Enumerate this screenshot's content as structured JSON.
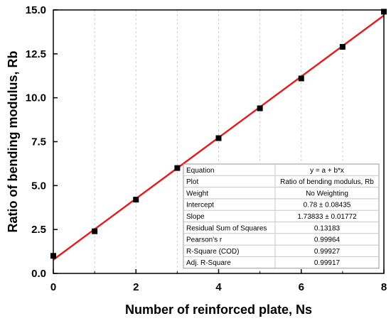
{
  "chart_data": {
    "type": "scatter",
    "xlabel": "Number of reinforced plate, Ns",
    "ylabel": "Ratio of bending modulus, Rb",
    "xlim": [
      0,
      8
    ],
    "ylim": [
      0,
      15
    ],
    "x_ticks": [
      "0",
      "2",
      "4",
      "6",
      "8"
    ],
    "y_ticks": [
      "0.0",
      "2.5",
      "5.0",
      "7.5",
      "10.0",
      "12.5",
      "15.0"
    ],
    "grid": "vertical-dashed",
    "series": [
      {
        "kind": "points",
        "marker": "square",
        "color": "#000000",
        "x": [
          0,
          1,
          2,
          3,
          4,
          5,
          6,
          7,
          8
        ],
        "y": [
          1.0,
          2.4,
          4.2,
          6.0,
          7.7,
          9.4,
          11.1,
          12.9,
          14.9
        ]
      },
      {
        "kind": "fit-line",
        "color": "#e02020",
        "intercept": 0.78,
        "slope": 1.73833
      }
    ],
    "stats_table": {
      "placement": "bottom-right",
      "rows": [
        {
          "label": "Equation",
          "value": "y = a + b*x"
        },
        {
          "label": "Plot",
          "value": "Ratio of bending modulus, Rb"
        },
        {
          "label": "Weight",
          "value": "No Weighting"
        },
        {
          "label": "Intercept",
          "value": "0.78 ± 0.08435"
        },
        {
          "label": "Slope",
          "value": "1.73833 ± 0.01772"
        },
        {
          "label": "Residual Sum of Squares",
          "value": "0.13183"
        },
        {
          "label": "Pearson's r",
          "value": "0.99964"
        },
        {
          "label": "R-Square (COD)",
          "value": "0.99927"
        },
        {
          "label": "Adj. R-Square",
          "value": "0.99917"
        }
      ]
    }
  }
}
